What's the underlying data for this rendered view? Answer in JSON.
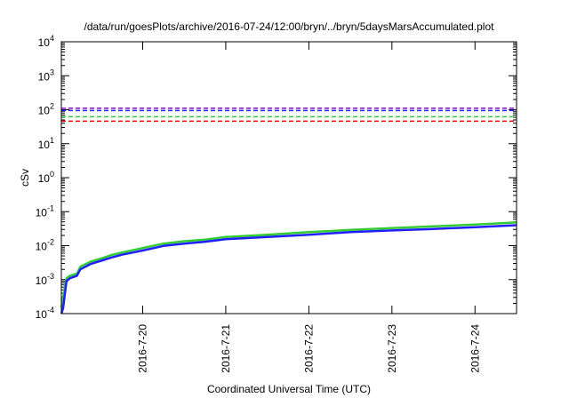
{
  "chart_data": {
    "type": "line",
    "title": "/data/run/goesPlots/archive/2016-07-24/12:00/bryn/../bryn/5daysMarsAccumulated.plot",
    "xlabel": "Coordinated Universal Time (UTC)",
    "ylabel": "cSv",
    "y_scale": "log",
    "ylim": [
      0.0001,
      10000
    ],
    "xlim": [
      "2016-07-19 00:30",
      "2016-07-24 12:00"
    ],
    "y_ticks": [
      {
        "base": "10",
        "exp": "4"
      },
      {
        "base": "10",
        "exp": "3"
      },
      {
        "base": "10",
        "exp": "2"
      },
      {
        "base": "10",
        "exp": "1"
      },
      {
        "base": "10",
        "exp": "0"
      },
      {
        "base": "10",
        "exp": "-1"
      },
      {
        "base": "10",
        "exp": "-2"
      },
      {
        "base": "10",
        "exp": "-3"
      },
      {
        "base": "10",
        "exp": "-4"
      }
    ],
    "x_ticks": [
      "2016-7-20",
      "2016-7-21",
      "2016-7-22",
      "2016-7-23",
      "2016-7-24"
    ],
    "grid": false,
    "legend": "none",
    "series": [
      {
        "color": "#33cc33",
        "style": "solid",
        "x": [
          "2016-07-19 00:30",
          "2016-07-19 02:00",
          "2016-07-19 03:00",
          "2016-07-19 05:00",
          "2016-07-19 06:00",
          "2016-07-19 09:00",
          "2016-07-19 12:00",
          "2016-07-19 15:00",
          "2016-07-19 18:00",
          "2016-07-20 00:00",
          "2016-07-20 06:00",
          "2016-07-20 12:00",
          "2016-07-20 18:00",
          "2016-07-21 00:00",
          "2016-07-21 12:00",
          "2016-07-22 00:00",
          "2016-07-22 12:00",
          "2016-07-23 00:00",
          "2016-07-23 12:00",
          "2016-07-24 00:00",
          "2016-07-24 12:00"
        ],
        "y": [
          0.00015,
          0.0011,
          0.0013,
          0.0015,
          0.0024,
          0.0034,
          0.0042,
          0.0053,
          0.0063,
          0.0085,
          0.0115,
          0.0135,
          0.015,
          0.018,
          0.021,
          0.025,
          0.029,
          0.033,
          0.037,
          0.042,
          0.048
        ]
      },
      {
        "color": "#1f1fff",
        "style": "solid",
        "x": [
          "2016-07-19 00:30",
          "2016-07-19 01:00",
          "2016-07-19 02:00",
          "2016-07-19 03:00",
          "2016-07-19 05:00",
          "2016-07-19 06:00",
          "2016-07-19 09:00",
          "2016-07-19 12:00",
          "2016-07-19 15:00",
          "2016-07-19 18:00",
          "2016-07-20 00:00",
          "2016-07-20 06:00",
          "2016-07-20 12:00",
          "2016-07-20 18:00",
          "2016-07-21 00:00",
          "2016-07-21 12:00",
          "2016-07-22 00:00",
          "2016-07-22 12:00",
          "2016-07-23 00:00",
          "2016-07-23 12:00",
          "2016-07-24 00:00",
          "2016-07-24 12:00"
        ],
        "y": [
          0.0001,
          0.00014,
          0.0009,
          0.0011,
          0.0013,
          0.002,
          0.0029,
          0.0036,
          0.0045,
          0.0054,
          0.0072,
          0.0098,
          0.0115,
          0.013,
          0.0155,
          0.018,
          0.021,
          0.025,
          0.028,
          0.031,
          0.035,
          0.04
        ]
      },
      {
        "color": "#9400d3",
        "style": "dashed",
        "x": [
          "2016-07-19 00:30",
          "2016-07-24 12:00"
        ],
        "y": [
          110,
          110
        ]
      },
      {
        "color": "#1f1fff",
        "style": "dashed",
        "x": [
          "2016-07-19 00:30",
          "2016-07-24 12:00"
        ],
        "y": [
          95,
          95
        ]
      },
      {
        "color": "#33cc33",
        "style": "dashed",
        "x": [
          "2016-07-19 00:30",
          "2016-07-24 12:00"
        ],
        "y": [
          62,
          62
        ]
      },
      {
        "color": "#ee0000",
        "style": "dashed",
        "x": [
          "2016-07-19 00:30",
          "2016-07-24 12:00"
        ],
        "y": [
          46,
          46
        ]
      }
    ]
  }
}
